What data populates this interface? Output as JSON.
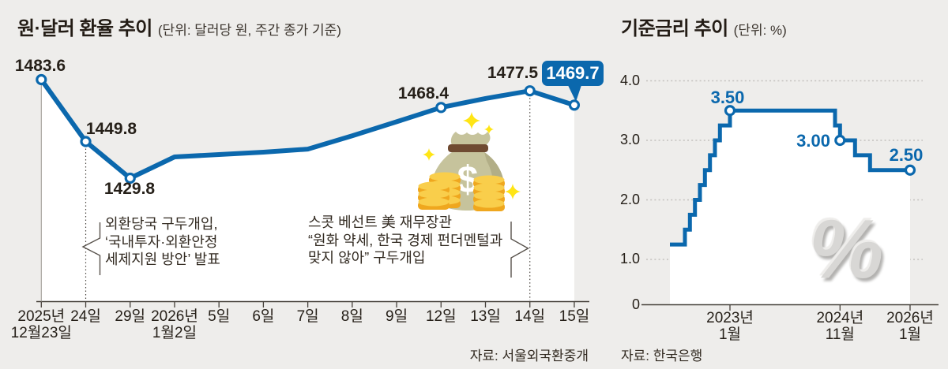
{
  "colors": {
    "line_blue": "#0b68ad",
    "background": "#eeedeb",
    "fill_white": "#ffffff",
    "text_dark": "#262019",
    "coin_gold": "#efa71e",
    "bag_khaki": "#c6c39c",
    "sparkle_yellow": "#ffe515"
  },
  "icons": {
    "money_bag": {
      "name": "money-bag-icon",
      "symbol": "$"
    },
    "watermark": {
      "name": "percent-watermark",
      "symbol": "%"
    }
  },
  "chart_data": [
    {
      "type": "line",
      "title": "원·달러 환율 추이",
      "unit_note": "(단위: 달러당 원, 주간 종가 기준)",
      "source": "자료: 서울외국환중개",
      "x_ticks": [
        [
          "2025년",
          "12월23일"
        ],
        [
          "24일"
        ],
        [
          "29일"
        ],
        [
          "2026년",
          "1월2일"
        ],
        [
          "5일"
        ],
        [
          "6일"
        ],
        [
          "7일"
        ],
        [
          "8일"
        ],
        [
          "9일"
        ],
        [
          "12일"
        ],
        [
          "13일"
        ],
        [
          "14일"
        ],
        [
          "15일"
        ]
      ],
      "values": [
        1483.6,
        1449.8,
        1429.8,
        1441.4,
        1442.7,
        1444.0,
        1445.7,
        1452.9,
        1460.6,
        1468.4,
        1473.3,
        1477.5,
        1469.7
      ],
      "point_labels": {
        "0": "1483.6",
        "1": "1449.8",
        "2": "1429.8",
        "9": "1468.4",
        "11": "1477.5",
        "12": "1469.7"
      },
      "marker_indices": [
        0,
        1,
        2,
        9,
        11,
        12
      ],
      "event_line_indices": [
        1,
        11
      ],
      "highlight_callout_index": 12,
      "annotations": [
        {
          "lines": [
            "외환당국 구두개입,",
            "‘국내투자·외환안정",
            "세제지원 방안’ 발표"
          ]
        },
        {
          "lines": [
            "스콧 베선트 美 재무장관",
            "“원화 약세, 한국 경제 펀더멘털과",
            "맞지 않아” 구두개입"
          ]
        }
      ]
    },
    {
      "type": "step-line",
      "title": "기준금리 추이",
      "unit_note": "(단위: %)",
      "source": "자료: 한국은행",
      "watermark": "%",
      "ylim": [
        0,
        4.0
      ],
      "y_ticks": [
        {
          "label": "4.0",
          "value": 4.0
        },
        {
          "label": "3.0",
          "value": 3.0
        },
        {
          "label": "2.0",
          "value": 2.0
        },
        {
          "label": "1.0",
          "value": 1.0
        },
        {
          "label": "0",
          "value": 0
        }
      ],
      "x_ticks": [
        {
          "lines": [
            "2023년",
            "1월"
          ],
          "date": "2023-01"
        },
        {
          "lines": [
            "2024년",
            "11월"
          ],
          "date": "2024-11"
        },
        {
          "lines": [
            "2026년",
            "1월"
          ],
          "date": "2026-01"
        }
      ],
      "steps": [
        {
          "date": "2022-01",
          "value": 1.25
        },
        {
          "date": "2022-04",
          "value": 1.5
        },
        {
          "date": "2022-05",
          "value": 1.75
        },
        {
          "date": "2022-06",
          "value": 2.0
        },
        {
          "date": "2022-07",
          "value": 2.25
        },
        {
          "date": "2022-08",
          "value": 2.5
        },
        {
          "date": "2022-09",
          "value": 2.75
        },
        {
          "date": "2022-10",
          "value": 3.0
        },
        {
          "date": "2022-11",
          "value": 3.25
        },
        {
          "date": "2023-01",
          "value": 3.5
        },
        {
          "date": "2024-10",
          "value": 3.25
        },
        {
          "date": "2024-11",
          "value": 3.0
        },
        {
          "date": "2025-02",
          "value": 2.75
        },
        {
          "date": "2025-05",
          "value": 2.5
        }
      ],
      "end_date": "2026-01",
      "step_labels": [
        {
          "date": "2023-01",
          "label": "3.50"
        },
        {
          "date": "2024-11",
          "label": "3.00"
        },
        {
          "date": "2026-01",
          "label": "2.50"
        }
      ]
    }
  ]
}
